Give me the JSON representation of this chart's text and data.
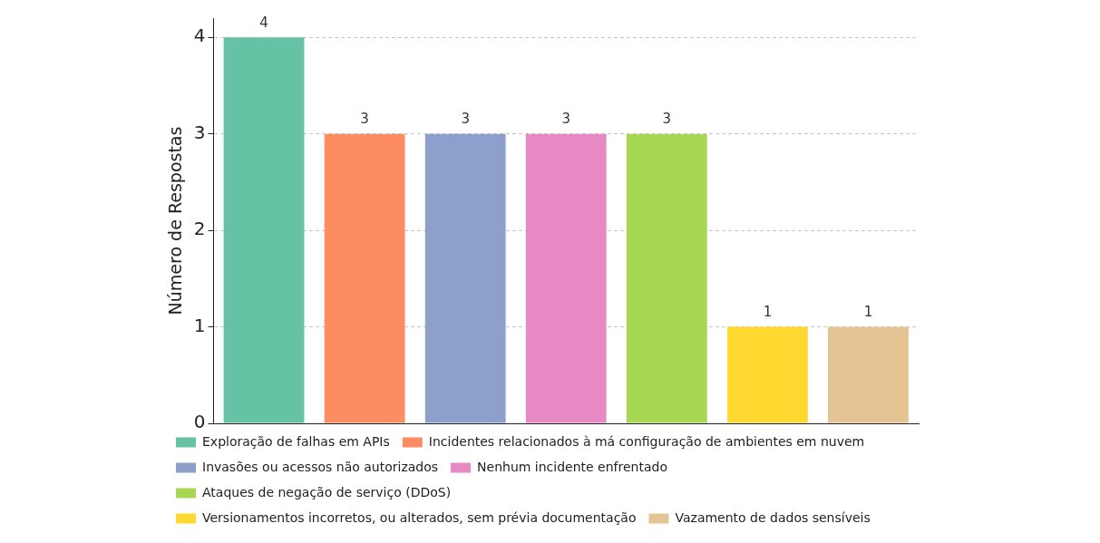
{
  "chart_data": {
    "type": "bar",
    "ylabel": "Número de Respostas",
    "categories": [
      null,
      null,
      null,
      null,
      null,
      null,
      null
    ],
    "series": [
      {
        "name": "Exploração de falhas em APIs",
        "color": "#66c2a5",
        "values": [
          4,
          null,
          null,
          null,
          null,
          null,
          null
        ]
      },
      {
        "name": "Incidentes relacionados à má configuração de ambientes em nuvem",
        "color": "#fc8d62",
        "values": [
          null,
          3,
          null,
          null,
          null,
          null,
          null
        ]
      },
      {
        "name": "Invasões ou acessos não autorizados",
        "color": "#8da0cb",
        "values": [
          null,
          null,
          3,
          null,
          null,
          null,
          null
        ]
      },
      {
        "name": "Nenhum incidente enfrentado",
        "color": "#e78ac3",
        "values": [
          null,
          null,
          null,
          3,
          null,
          null,
          null
        ]
      },
      {
        "name": "Ataques de negação de serviço (DDoS)",
        "color": "#a6d854",
        "values": [
          null,
          null,
          null,
          null,
          3,
          null,
          null
        ]
      },
      {
        "name": "Versionamentos incorretos, ou alterados, sem prévia documentação",
        "color": "#ffd92f",
        "values": [
          null,
          null,
          null,
          null,
          null,
          1,
          null
        ]
      },
      {
        "name": "Vazamento de dados sensíveis",
        "color": "#e5c494",
        "values": [
          null,
          null,
          null,
          null,
          null,
          null,
          1
        ]
      }
    ],
    "ylim": [
      0,
      4.2
    ],
    "yticks": [
      0,
      1,
      2,
      3,
      4
    ],
    "grid": "y",
    "legend": "bottom",
    "tick_labels": "y",
    "data_labels": true
  }
}
